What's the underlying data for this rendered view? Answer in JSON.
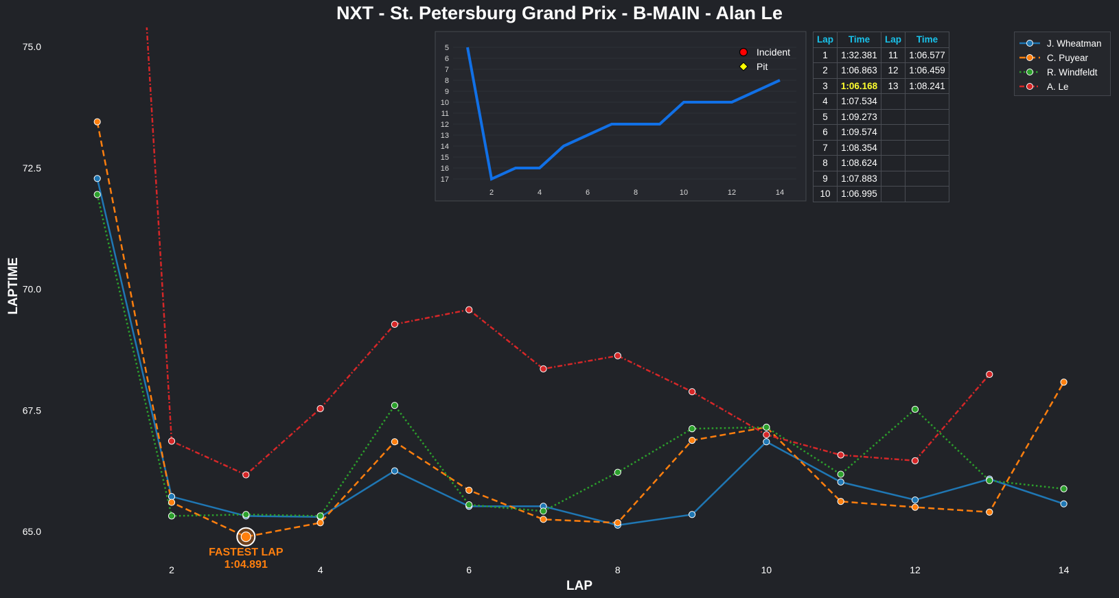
{
  "title": "NXT - St. Petersburg Grand Prix - B-MAIN - Alan Le",
  "colors": {
    "background": "#212328",
    "wheatman": "#1f77b4",
    "puyear": "#ff7f0e",
    "windfeldt": "#2ca02c",
    "le": "#d62728",
    "inset_line": "#1170e6",
    "table_header": "#19c2ea",
    "best_time": "#ffff2e"
  },
  "chart_data": [
    {
      "type": "line",
      "xlabel": "LAP",
      "ylabel": "LAPTIME",
      "xlim": [
        0.3,
        14.5
      ],
      "ylim": [
        63.8,
        85.8
      ],
      "xticks": [
        2,
        4,
        6,
        8,
        10,
        12,
        14
      ],
      "yticks": [
        "65.0",
        "67.5",
        "70.0",
        "72.5",
        "75.0",
        "77.5",
        "80.0",
        "82.5",
        "85.0"
      ],
      "legend_position": "top-right",
      "series": [
        {
          "name": "J. Wheatman",
          "color": "#1f77b4",
          "style": "solid",
          "x": [
            1,
            2,
            3,
            4,
            5,
            6,
            7,
            8,
            9,
            10,
            11,
            12,
            13,
            14
          ],
          "values": [
            72.28,
            65.72,
            65.32,
            65.3,
            66.25,
            65.52,
            65.52,
            65.13,
            65.35,
            66.85,
            66.02,
            65.65,
            66.08,
            65.57
          ]
        },
        {
          "name": "C. Puyear",
          "color": "#ff7f0e",
          "style": "dashed",
          "x": [
            1,
            2,
            3,
            4,
            5,
            6,
            7,
            8,
            9,
            10,
            11,
            12,
            13,
            14
          ],
          "values": [
            73.45,
            65.6,
            64.891,
            65.18,
            66.85,
            65.85,
            65.25,
            65.18,
            66.88,
            67.15,
            65.62,
            65.5,
            65.4,
            68.08
          ]
        },
        {
          "name": "R. Windfeldt",
          "color": "#2ca02c",
          "style": "dotted",
          "x": [
            1,
            2,
            3,
            4,
            5,
            6,
            7,
            8,
            9,
            10,
            11,
            12,
            13,
            14
          ],
          "values": [
            71.95,
            65.32,
            65.35,
            65.32,
            67.6,
            65.55,
            65.42,
            66.22,
            67.12,
            67.15,
            66.18,
            67.52,
            66.05,
            65.88
          ]
        },
        {
          "name": "A. Le",
          "color": "#d62728",
          "style": "dashdot",
          "x": [
            1,
            2,
            3,
            4,
            5,
            6,
            7,
            8,
            9,
            10,
            11,
            12,
            13
          ],
          "values": [
            92.381,
            66.863,
            66.168,
            67.534,
            69.273,
            69.574,
            68.354,
            68.624,
            67.883,
            66.995,
            66.577,
            66.459,
            68.241
          ]
        }
      ],
      "annotation": {
        "label": "FASTEST LAP",
        "time": "1:04.891",
        "lap": 3,
        "value": 64.891
      }
    },
    {
      "type": "line",
      "title": "",
      "x": [
        1,
        2,
        3,
        4,
        5,
        6,
        7,
        8,
        9,
        10,
        11,
        12,
        13,
        14
      ],
      "values": [
        5,
        17,
        16,
        16,
        14,
        13,
        12,
        12,
        12,
        10,
        10,
        10,
        9,
        8
      ],
      "xticks": [
        2,
        4,
        6,
        8,
        10,
        12,
        14
      ],
      "yticks": [
        5,
        6,
        7,
        8,
        9,
        10,
        11,
        12,
        13,
        14,
        15,
        16,
        17
      ],
      "ylim": [
        4.5,
        17.8
      ],
      "xlim": [
        0.6,
        14.6
      ],
      "y_inverted": true,
      "legend_position": "top-right",
      "legend": [
        {
          "label": "Incident",
          "marker": "circle",
          "color": "#ff0000"
        },
        {
          "label": "Pit",
          "marker": "diamond",
          "color": "#ffff00"
        }
      ]
    }
  ],
  "table": {
    "headers": [
      "Lap",
      "Time",
      "Lap",
      "Time"
    ],
    "rows": [
      [
        "1",
        "1:32.381",
        "11",
        "1:06.577"
      ],
      [
        "2",
        "1:06.863",
        "12",
        "1:06.459"
      ],
      [
        "3",
        "1:06.168",
        "13",
        "1:08.241"
      ],
      [
        "4",
        "1:07.534",
        "",
        ""
      ],
      [
        "5",
        "1:09.273",
        "",
        ""
      ],
      [
        "6",
        "1:09.574",
        "",
        ""
      ],
      [
        "7",
        "1:08.354",
        "",
        ""
      ],
      [
        "8",
        "1:08.624",
        "",
        ""
      ],
      [
        "9",
        "1:07.883",
        "",
        ""
      ],
      [
        "10",
        "1:06.995",
        "",
        ""
      ]
    ],
    "best_time": "1:06.168"
  }
}
